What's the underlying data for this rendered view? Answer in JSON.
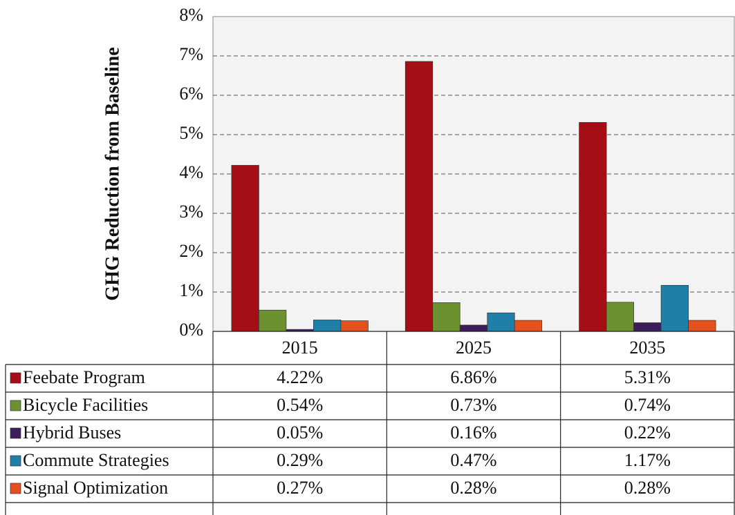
{
  "chart_data": {
    "type": "bar",
    "y_label": "GHG Reduction from Baseline",
    "categories": [
      "2015",
      "2025",
      "2035"
    ],
    "series": [
      {
        "name": "Feebate Program",
        "color": "#a50e14",
        "values": [
          4.22,
          6.86,
          5.31
        ],
        "value_labels": [
          "4.22%",
          "6.86%",
          "5.31%"
        ]
      },
      {
        "name": "Bicycle Facilities",
        "color": "#6e9130",
        "values": [
          0.54,
          0.73,
          0.74
        ],
        "value_labels": [
          "0.54%",
          "0.73%",
          "0.74%"
        ]
      },
      {
        "name": "Hybrid Buses",
        "color": "#3c1e5c",
        "values": [
          0.05,
          0.16,
          0.22
        ],
        "value_labels": [
          "0.05%",
          "0.16%",
          "0.22%"
        ]
      },
      {
        "name": "Commute Strategies",
        "color": "#1f7fa8",
        "values": [
          0.29,
          0.47,
          1.17
        ],
        "value_labels": [
          "0.29%",
          "0.47%",
          "1.17%"
        ]
      },
      {
        "name": "Signal Optimization",
        "color": "#e5511d",
        "values": [
          0.27,
          0.28,
          0.28
        ],
        "value_labels": [
          "0.27%",
          "0.28%",
          "0.28%"
        ]
      }
    ],
    "ylim": [
      0,
      8
    ],
    "yticks": [
      {
        "value": 0,
        "label": "0%"
      },
      {
        "value": 1,
        "label": "1%"
      },
      {
        "value": 2,
        "label": "2%"
      },
      {
        "value": 3,
        "label": "3%"
      },
      {
        "value": 4,
        "label": "4%"
      },
      {
        "value": 5,
        "label": "5%"
      },
      {
        "value": 6,
        "label": "6%"
      },
      {
        "value": 7,
        "label": "7%"
      },
      {
        "value": 8,
        "label": "8%"
      }
    ],
    "grid": true
  }
}
